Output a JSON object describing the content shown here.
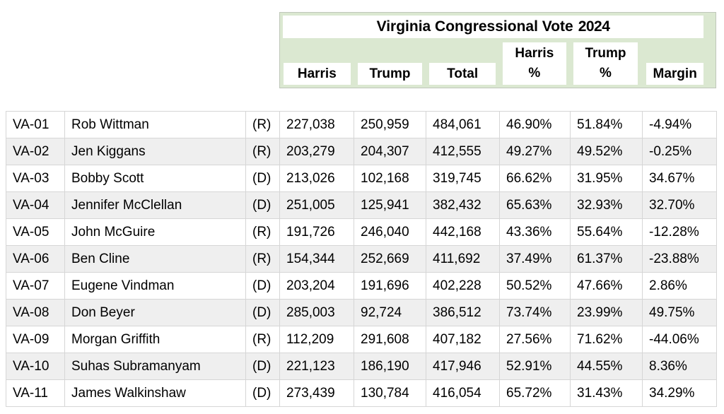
{
  "header": {
    "title": "Virginia Congressional Vote",
    "year": "2024",
    "columns": [
      {
        "label": "Harris",
        "lines": [
          "Harris"
        ]
      },
      {
        "label": "Trump",
        "lines": [
          "Trump"
        ]
      },
      {
        "label": "Total",
        "lines": [
          "Total"
        ]
      },
      {
        "label": "Harris %",
        "lines": [
          "Harris",
          "%"
        ]
      },
      {
        "label": "Trump %",
        "lines": [
          "Trump",
          "%"
        ]
      },
      {
        "label": "Margin",
        "lines": [
          "Margin"
        ]
      }
    ]
  },
  "chart_data": {
    "type": "table",
    "title": "Virginia Congressional Vote 2024",
    "column_labels": [
      "Harris",
      "Trump",
      "Total",
      "Harris %",
      "Trump %",
      "Margin"
    ],
    "rows": [
      {
        "district": "VA-01",
        "name": "Rob Wittman",
        "party": "(R)",
        "harris": "227,038",
        "trump": "250,959",
        "total": "484,061",
        "harris_pct": "46.90%",
        "trump_pct": "51.84%",
        "margin": "-4.94%"
      },
      {
        "district": "VA-02",
        "name": "Jen Kiggans",
        "party": "(R)",
        "harris": "203,279",
        "trump": "204,307",
        "total": "412,555",
        "harris_pct": "49.27%",
        "trump_pct": "49.52%",
        "margin": "-0.25%"
      },
      {
        "district": "VA-03",
        "name": "Bobby Scott",
        "party": "(D)",
        "harris": "213,026",
        "trump": "102,168",
        "total": "319,745",
        "harris_pct": "66.62%",
        "trump_pct": "31.95%",
        "margin": "34.67%"
      },
      {
        "district": "VA-04",
        "name": "Jennifer McClellan",
        "party": "(D)",
        "harris": "251,005",
        "trump": "125,941",
        "total": "382,432",
        "harris_pct": "65.63%",
        "trump_pct": "32.93%",
        "margin": "32.70%"
      },
      {
        "district": "VA-05",
        "name": "John McGuire",
        "party": "(R)",
        "harris": "191,726",
        "trump": "246,040",
        "total": "442,168",
        "harris_pct": "43.36%",
        "trump_pct": "55.64%",
        "margin": "-12.28%"
      },
      {
        "district": "VA-06",
        "name": "Ben Cline",
        "party": "(R)",
        "harris": "154,344",
        "trump": "252,669",
        "total": "411,692",
        "harris_pct": "37.49%",
        "trump_pct": "61.37%",
        "margin": "-23.88%"
      },
      {
        "district": "VA-07",
        "name": "Eugene Vindman",
        "party": "(D)",
        "harris": "203,204",
        "trump": "191,696",
        "total": "402,228",
        "harris_pct": "50.52%",
        "trump_pct": "47.66%",
        "margin": "2.86%"
      },
      {
        "district": "VA-08",
        "name": "Don Beyer",
        "party": "(D)",
        "harris": "285,003",
        "trump": "92,724",
        "total": "386,512",
        "harris_pct": "73.74%",
        "trump_pct": "23.99%",
        "margin": "49.75%"
      },
      {
        "district": "VA-09",
        "name": "Morgan Griffith",
        "party": "(R)",
        "harris": "112,209",
        "trump": "291,608",
        "total": "407,182",
        "harris_pct": "27.56%",
        "trump_pct": "71.62%",
        "margin": "-44.06%"
      },
      {
        "district": "VA-10",
        "name": "Suhas Subramanyam",
        "party": "(D)",
        "harris": "221,123",
        "trump": "186,190",
        "total": "417,946",
        "harris_pct": "52.91%",
        "trump_pct": "44.55%",
        "margin": "8.36%"
      },
      {
        "district": "VA-11",
        "name": "James Walkinshaw",
        "party": "(D)",
        "harris": "273,439",
        "trump": "130,784",
        "total": "416,054",
        "harris_pct": "65.72%",
        "trump_pct": "31.43%",
        "margin": "34.29%"
      }
    ]
  },
  "colors": {
    "header_green": "#dbe8d1",
    "row_alt": "#efefef",
    "grid_border": "#d6d6d6"
  }
}
